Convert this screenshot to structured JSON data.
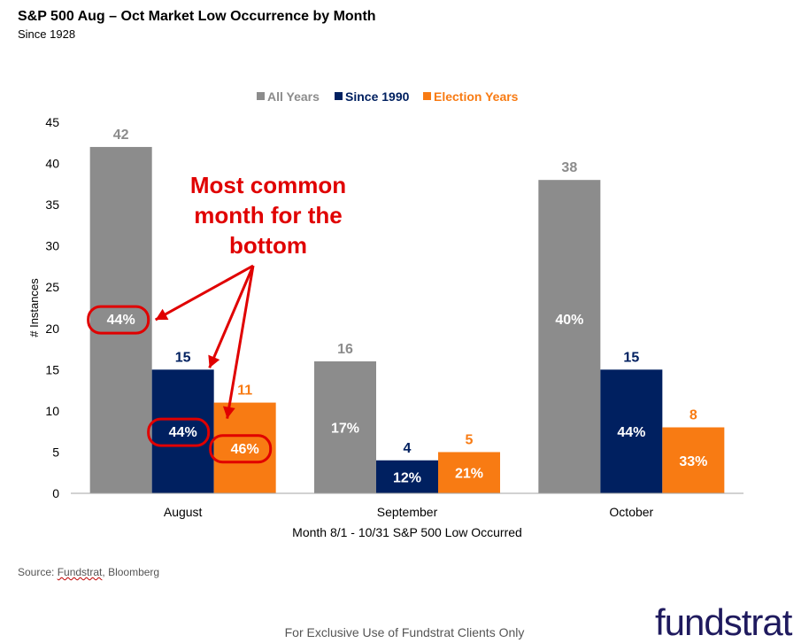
{
  "header": {
    "title": "S&P 500 Aug – Oct Market Low Occurrence by Month",
    "subtitle": "Since 1928"
  },
  "chart_data": {
    "type": "bar",
    "categories": [
      "August",
      "September",
      "October"
    ],
    "series": [
      {
        "name": "All Years",
        "color": "#8c8c8c",
        "label_color": "#8c8c8c",
        "values": [
          42,
          16,
          38
        ],
        "pct_labels": [
          "44%",
          "17%",
          "40%"
        ]
      },
      {
        "name": "Since 1990",
        "color": "#002060",
        "label_color": "#002060",
        "values": [
          15,
          4,
          15
        ],
        "pct_labels": [
          "44%",
          "12%",
          "44%"
        ]
      },
      {
        "name": "Election Years",
        "color": "#f87b13",
        "label_color": "#f87b13",
        "values": [
          11,
          5,
          8
        ],
        "pct_labels": [
          "46%",
          "21%",
          "33%"
        ]
      }
    ],
    "ylabel": "# Instances",
    "xlabel": "Month 8/1 - 10/31  S&P 500 Low Occurred",
    "ylim": [
      0,
      45
    ],
    "yticks": [
      0,
      5,
      10,
      15,
      20,
      25,
      30,
      35,
      40,
      45
    ],
    "grid": false,
    "legend": "top-center",
    "annotation": {
      "lines": [
        "Most common",
        "month for the",
        "bottom"
      ],
      "color": "#e00000"
    }
  },
  "source": {
    "prefix": "Source: ",
    "underlined": "Fundstrat",
    "suffix": ", Bloomberg"
  },
  "footer": "For Exclusive Use of Fundstrat Clients Only",
  "logo": "fundstrat"
}
